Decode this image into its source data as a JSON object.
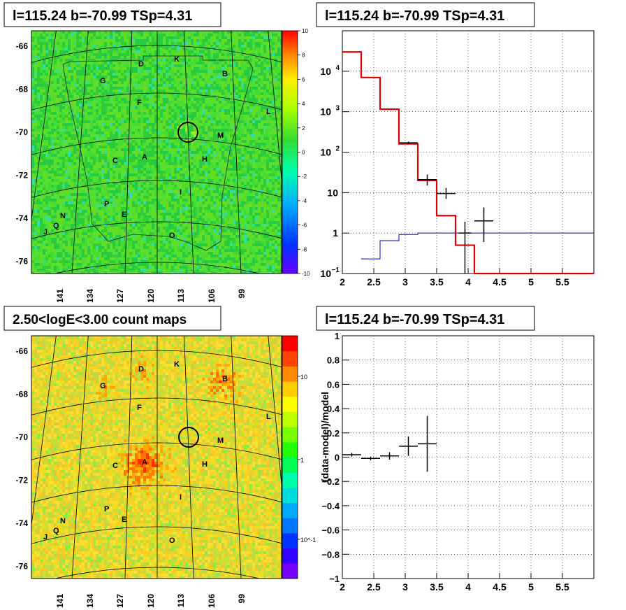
{
  "panels": {
    "top_left_title": "l=115.24 b=-70.99 TSp=4.31",
    "top_right_title": "l=115.24 b=-70.99 TSp=4.31",
    "bottom_left_title": "2.50<logE<3.00 count maps",
    "bottom_right_title": "l=115.24 b=-70.99 TSp=4.31"
  },
  "maps": {
    "lat_ticks": [
      "-66",
      "-68",
      "-70",
      "-72",
      "-74",
      "-76"
    ],
    "lon_ticks": [
      "141",
      "134",
      "127",
      "120",
      "113",
      "106",
      "99"
    ],
    "sources": [
      "K",
      "D",
      "B",
      "G",
      "F",
      "L",
      "M",
      "A",
      "C",
      "H",
      "I",
      "P",
      "E",
      "N",
      "Q",
      "J",
      "O"
    ],
    "residual_palette_ticks": [
      "10",
      "8",
      "6",
      "4",
      "2",
      "0",
      "-2",
      "-4",
      "-6",
      "-8",
      "-10"
    ],
    "counts_palette_ticks": [
      "10",
      "1",
      "10^-1"
    ]
  },
  "chart_data": [
    {
      "type": "line",
      "panel": "spectrum",
      "title": "l=115.24 b=-70.99 TSp=4.31",
      "xlim": [
        2,
        6
      ],
      "ylim": [
        0.1,
        100000
      ],
      "log_y": true,
      "x_ticks": [
        "2",
        "2.5",
        "3",
        "3.5",
        "4",
        "4.5",
        "5",
        "5.5"
      ],
      "y_ticks": [
        "10^-1",
        "1",
        "10",
        "10^2",
        "10^3",
        "10^4"
      ],
      "grid": true,
      "series": [
        {
          "color": "#e00000",
          "step_edges": [
            2.0,
            2.3,
            2.6,
            2.9,
            3.2,
            3.5,
            3.8,
            4.1,
            4.4,
            6.0
          ],
          "values": [
            30000,
            7000,
            1150,
            160,
            20,
            2.7,
            0.5,
            0.1,
            0.1
          ]
        },
        {
          "color": "#0000c0",
          "step_edges": [
            2.3,
            2.6,
            2.9,
            3.2,
            6.0
          ],
          "values": [
            0.23,
            0.65,
            0.92,
            1.0
          ]
        },
        {
          "color": "#000000",
          "points": [
            {
              "x": 3.05,
              "y": 170,
              "xerr": 0.15,
              "ylo": 158,
              "yhi": 182
            },
            {
              "x": 3.35,
              "y": 21,
              "xerr": 0.15,
              "ylo": 15,
              "yhi": 28
            },
            {
              "x": 3.65,
              "y": 9.5,
              "xerr": 0.15,
              "ylo": 7,
              "yhi": 13
            },
            {
              "x": 3.95,
              "y": 1,
              "xerr": 0.1,
              "ylo": 0.1,
              "yhi": 1.9
            },
            {
              "x": 4.25,
              "y": 2,
              "xerr": 0.15,
              "ylo": 0.6,
              "yhi": 4.3
            }
          ]
        }
      ]
    },
    {
      "type": "scatter",
      "panel": "residuals",
      "title": "l=115.24 b=-70.99 TSp=4.31",
      "ylabel": "(data-model)/model",
      "xlim": [
        2,
        6
      ],
      "ylim": [
        -1,
        1
      ],
      "x_ticks": [
        "2",
        "2.5",
        "3",
        "3.5",
        "4",
        "4.5",
        "5",
        "5.5"
      ],
      "y_ticks": [
        "1",
        "0.8",
        "0.6",
        "0.4",
        "0.2",
        "0",
        "−0.2",
        "−0.4",
        "−0.6",
        "−0.8",
        "−1"
      ],
      "grid": true,
      "series": [
        {
          "color": "#000000",
          "points": [
            {
              "x": 2.15,
              "y": 0.02,
              "xerr": 0.15,
              "yerr": 0.015
            },
            {
              "x": 2.45,
              "y": -0.01,
              "xerr": 0.15,
              "yerr": 0.015
            },
            {
              "x": 2.75,
              "y": 0.01,
              "xerr": 0.15,
              "yerr": 0.03
            },
            {
              "x": 3.05,
              "y": 0.09,
              "xerr": 0.15,
              "yerr": 0.08
            },
            {
              "x": 3.35,
              "y": 0.11,
              "xerr": 0.15,
              "yerr": 0.23
            }
          ]
        }
      ]
    }
  ]
}
